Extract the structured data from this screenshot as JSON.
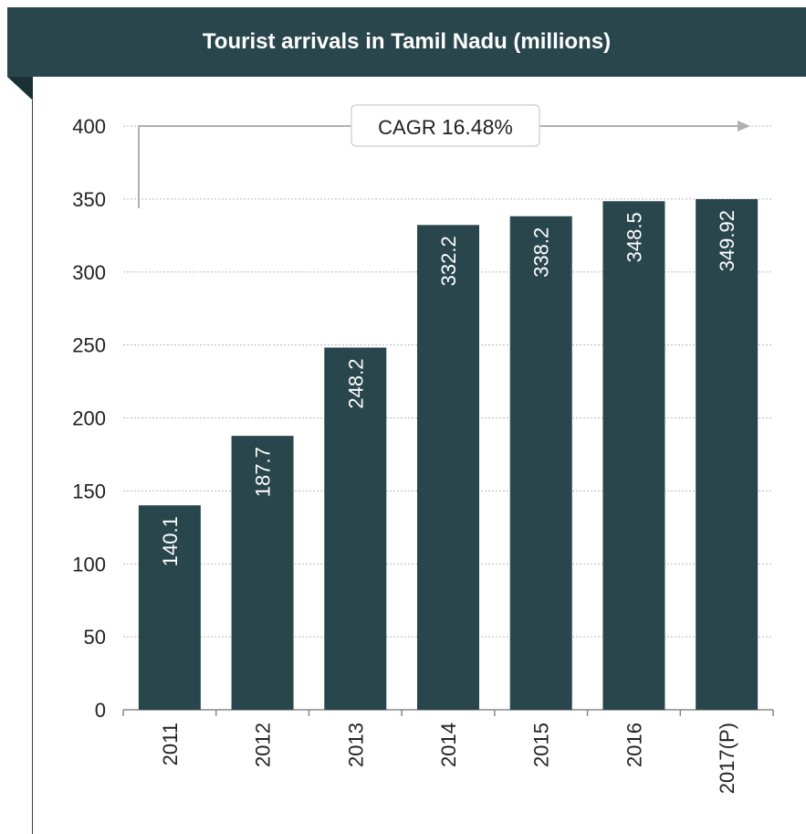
{
  "header": {
    "title": "Tourist arrivals in Tamil Nadu (millions)"
  },
  "annotation": {
    "label": "CAGR",
    "value": "16.48%"
  },
  "colors": {
    "header": "#2a464d",
    "bar": "#2a464d",
    "grid": "#b8b8b8",
    "axis": "#888888"
  },
  "chart_data": {
    "type": "bar",
    "title": "Tourist arrivals in Tamil Nadu (millions)",
    "categories": [
      "2011",
      "2012",
      "2013",
      "2014",
      "2015",
      "2016",
      "2017(P)"
    ],
    "values": [
      140.1,
      187.7,
      248.2,
      332.2,
      338.2,
      348.5,
      349.92
    ],
    "value_labels": [
      "140.1",
      "187.7",
      "248.2",
      "332.2",
      "338.2",
      "348.5",
      "349.92"
    ],
    "yticks": [
      "0",
      "50",
      "100",
      "150",
      "200",
      "250",
      "300",
      "350",
      "400"
    ],
    "ylim": [
      0,
      400
    ],
    "xlabel": "",
    "ylabel": "",
    "grid": true,
    "legend": "none"
  }
}
